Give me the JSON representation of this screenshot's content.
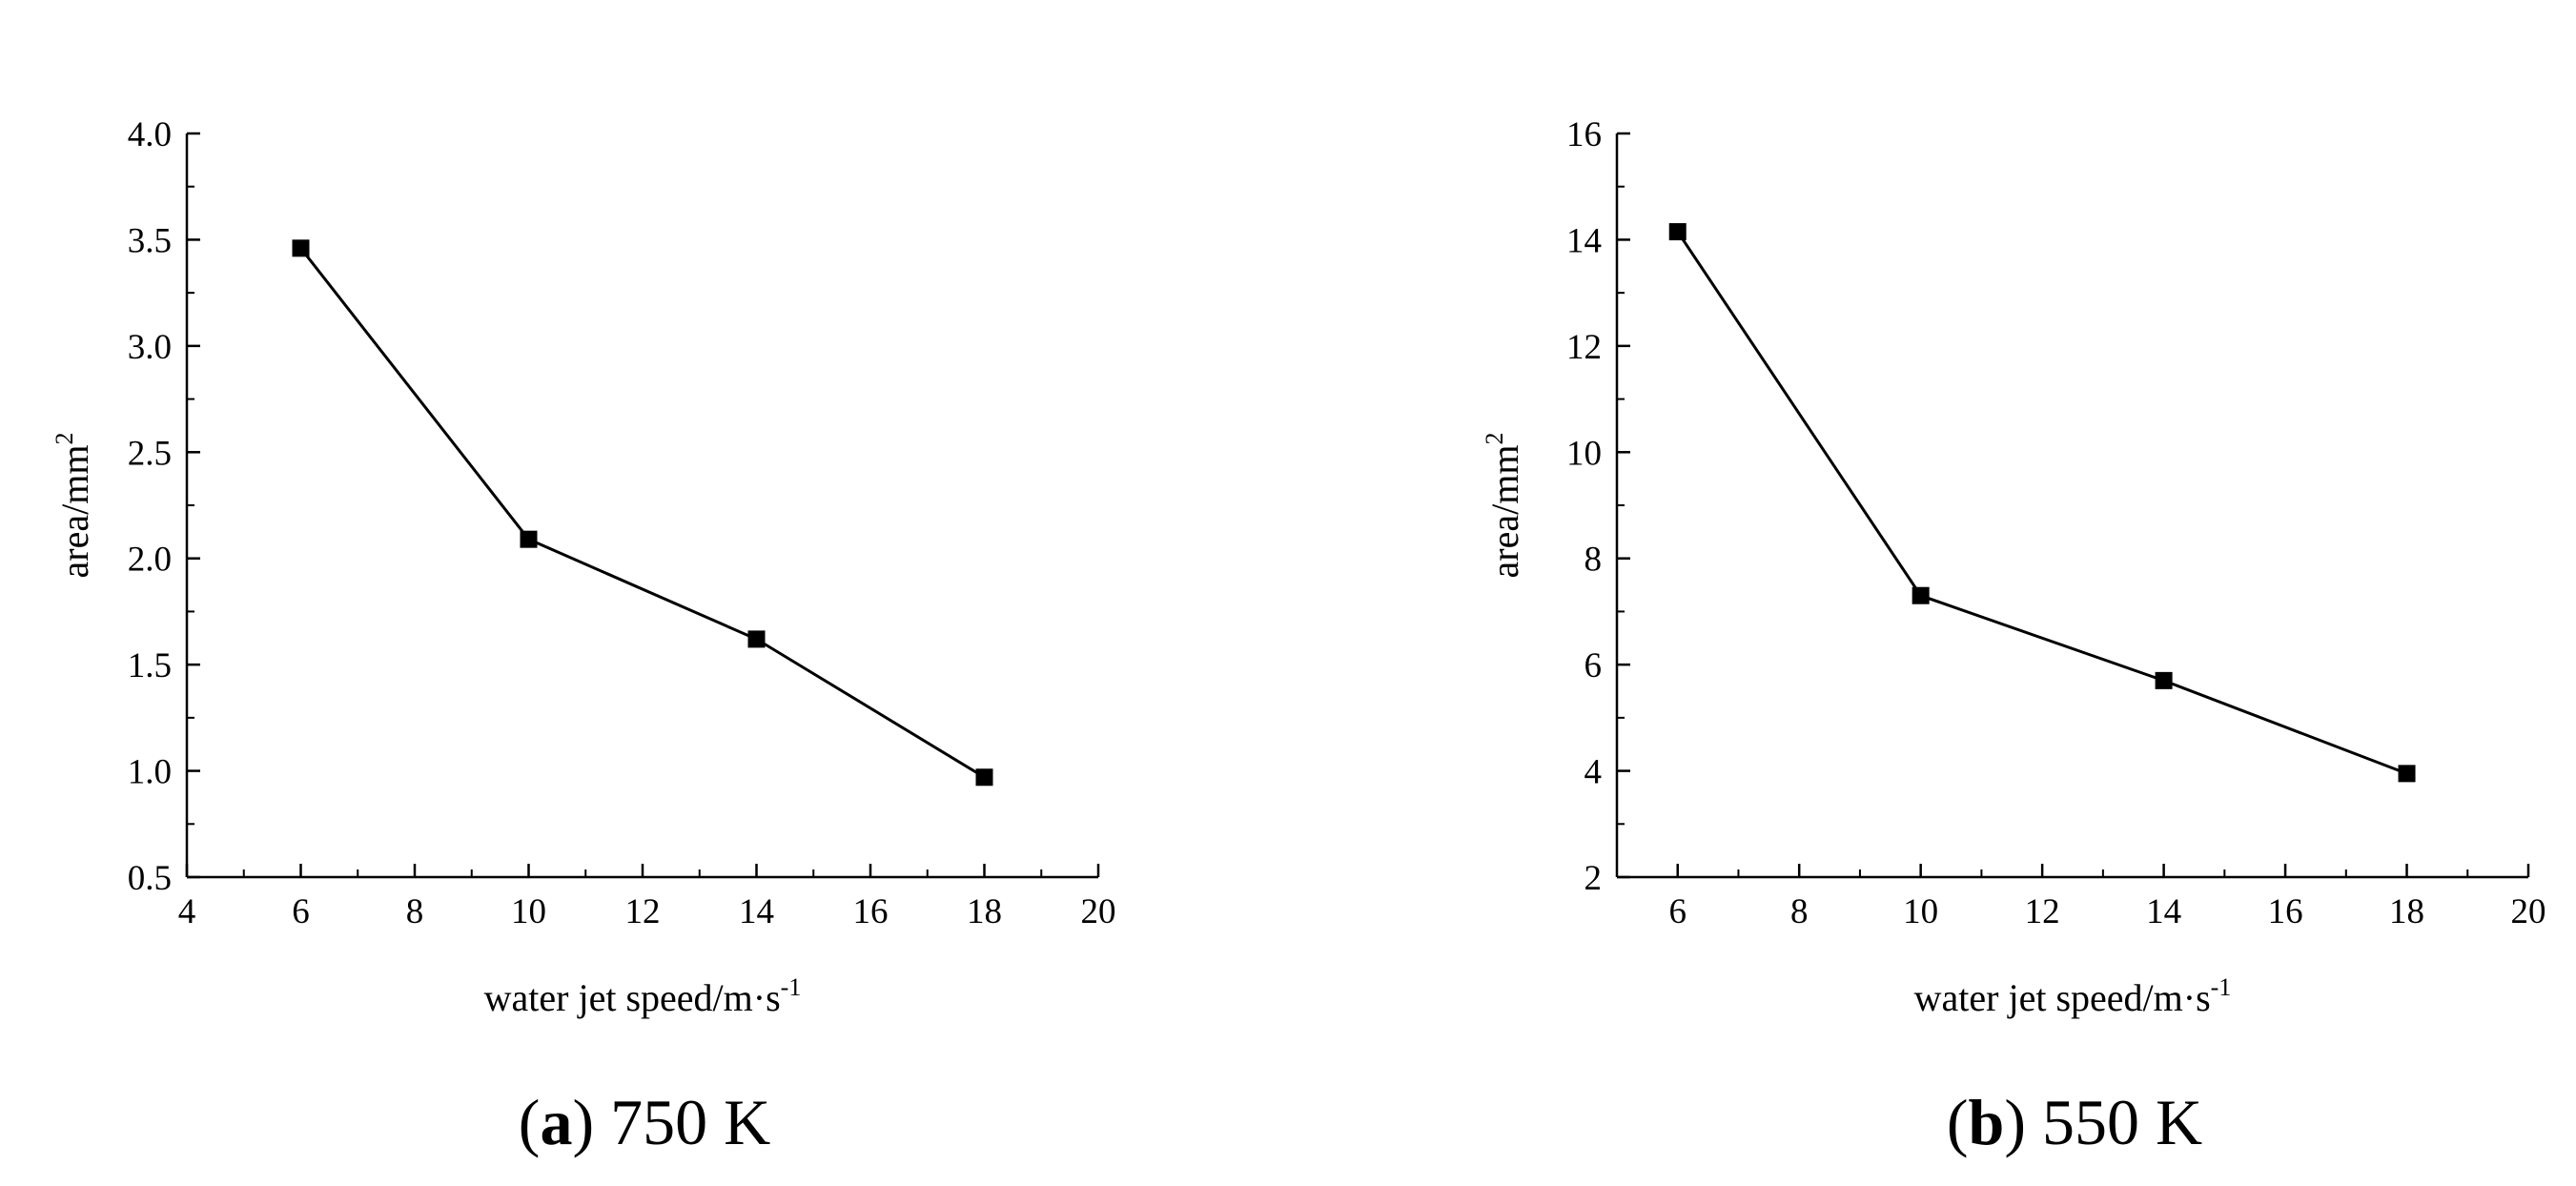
{
  "chart_data": [
    {
      "type": "line",
      "caption_letter": "a",
      "caption_text": "750 K",
      "xlabel": "water jet speed/m·s",
      "xlabel_sup": "-1",
      "ylabel": "area/mm",
      "ylabel_sup": "2",
      "xlim": [
        4,
        20
      ],
      "ylim": [
        0.5,
        4.0
      ],
      "x_ticks": [
        4,
        6,
        8,
        10,
        12,
        14,
        16,
        18,
        20
      ],
      "x_tick_labels": [
        "4",
        "6",
        "8",
        "10",
        "12",
        "14",
        "16",
        "18",
        "20"
      ],
      "y_ticks": [
        0.5,
        1.0,
        1.5,
        2.0,
        2.5,
        3.0,
        3.5,
        4.0
      ],
      "y_tick_labels": [
        "0.5",
        "1.0",
        "1.5",
        "2.0",
        "2.5",
        "3.0",
        "3.5",
        "4.0"
      ],
      "grid": false,
      "series": [
        {
          "x": [
            6,
            10,
            14,
            18
          ],
          "y": [
            3.46,
            2.09,
            1.62,
            0.97
          ],
          "marker": "square",
          "color": "#000000"
        }
      ]
    },
    {
      "type": "line",
      "caption_letter": "b",
      "caption_text": "550 K",
      "xlabel": "water jet speed/m·s",
      "xlabel_sup": "-1",
      "ylabel": "area/mm",
      "ylabel_sup": "2",
      "xlim": [
        5,
        20
      ],
      "ylim": [
        2,
        16
      ],
      "x_ticks": [
        6,
        8,
        10,
        12,
        14,
        16,
        18,
        20
      ],
      "x_tick_labels": [
        "6",
        "8",
        "10",
        "12",
        "14",
        "16",
        "18",
        "20"
      ],
      "y_ticks": [
        2,
        4,
        6,
        8,
        10,
        12,
        14,
        16
      ],
      "y_tick_labels": [
        "2",
        "4",
        "6",
        "8",
        "10",
        "12",
        "14",
        "16"
      ],
      "grid": false,
      "series": [
        {
          "x": [
            6,
            10,
            14,
            18
          ],
          "y": [
            14.15,
            7.3,
            5.7,
            3.95
          ],
          "marker": "square",
          "color": "#000000"
        }
      ]
    }
  ]
}
